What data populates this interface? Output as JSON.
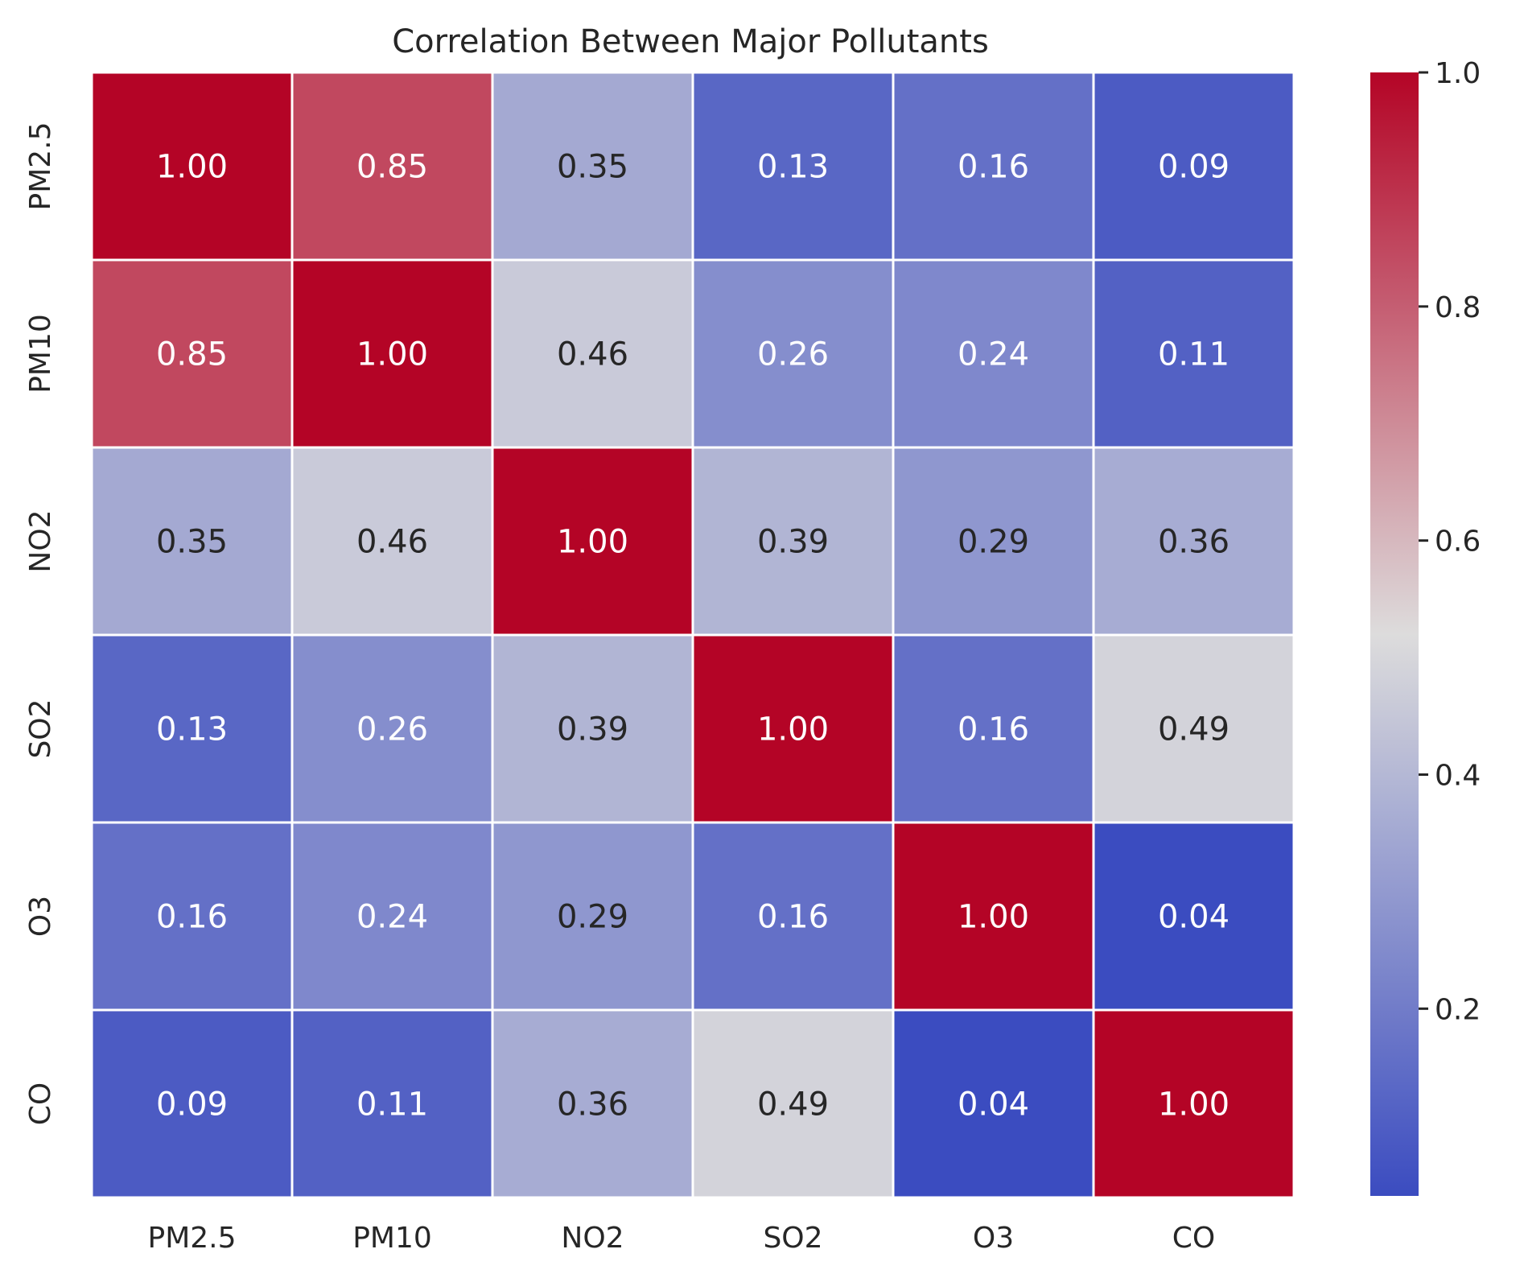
{
  "chart_data": {
    "type": "heatmap",
    "title": "Correlation Between Major Pollutants",
    "xlabel": "",
    "ylabel": "",
    "x_categories": [
      "PM2.5",
      "PM10",
      "NO2",
      "SO2",
      "O3",
      "CO"
    ],
    "y_categories": [
      "PM2.5",
      "PM10",
      "NO2",
      "SO2",
      "O3",
      "CO"
    ],
    "values": [
      [
        1.0,
        0.85,
        0.35,
        0.13,
        0.16,
        0.09
      ],
      [
        0.85,
        1.0,
        0.46,
        0.26,
        0.24,
        0.11
      ],
      [
        0.35,
        0.46,
        1.0,
        0.39,
        0.29,
        0.36
      ],
      [
        0.13,
        0.26,
        0.39,
        1.0,
        0.16,
        0.49
      ],
      [
        0.16,
        0.24,
        0.29,
        0.16,
        1.0,
        0.04
      ],
      [
        0.09,
        0.11,
        0.36,
        0.49,
        0.04,
        1.0
      ]
    ],
    "colormap": "coolwarm",
    "colormap_stops": [
      "#3b4cc0",
      "#dddcdc",
      "#b40426"
    ],
    "color_range": [
      0.04,
      1.0
    ],
    "colorbar": {
      "ticks": [
        0.2,
        0.4,
        0.6,
        0.8,
        1.0
      ],
      "tick_labels": [
        "0.2",
        "0.4",
        "0.6",
        "0.8",
        "1.0"
      ],
      "placement": "right"
    },
    "annotations": true,
    "grid": false
  }
}
